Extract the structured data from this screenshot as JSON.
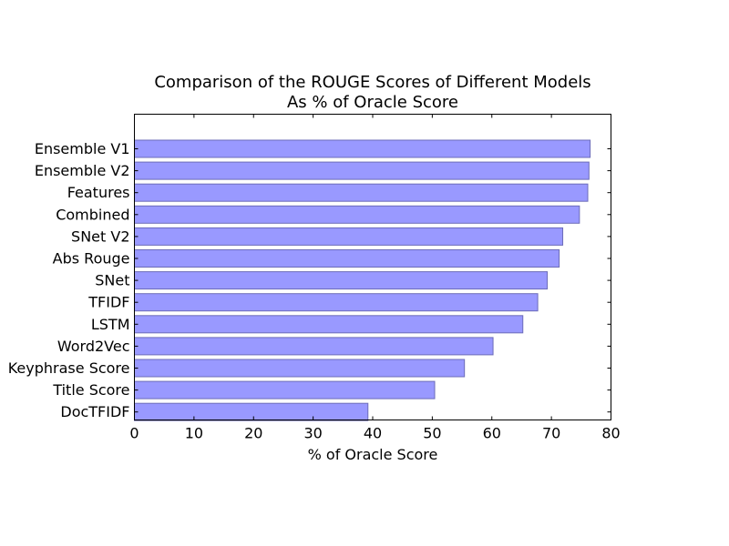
{
  "chart_data": {
    "type": "bar",
    "orientation": "horizontal",
    "title": [
      "Comparison of the ROUGE Scores of Different Models",
      "As % of Oracle Score"
    ],
    "xlabel": "% of Oracle Score",
    "ylabel": "",
    "xlim": [
      0,
      80
    ],
    "xticks": [
      0,
      10,
      20,
      30,
      40,
      50,
      60,
      70,
      80
    ],
    "categories": [
      "Ensemble V1",
      "Ensemble V2",
      "Features",
      "Combined",
      "SNet V2",
      "Abs Rouge",
      "SNet",
      "TFIDF",
      "LSTM",
      "Word2Vec",
      "Keyphrase Score",
      "Title Score",
      "DocTFIDF"
    ],
    "values": [
      76.5,
      76.3,
      76.1,
      74.7,
      71.9,
      71.3,
      69.3,
      67.7,
      65.2,
      60.2,
      55.4,
      50.4,
      39.2
    ],
    "grid": false,
    "legend": "none",
    "colors": {
      "bar_fill": "#9999ff",
      "bar_edge": "#6c6cb8",
      "axes": "#000000"
    }
  }
}
